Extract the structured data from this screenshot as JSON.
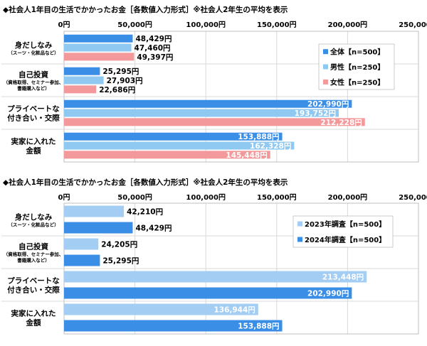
{
  "chart_data": [
    {
      "type": "bar",
      "orientation": "horizontal",
      "title": "◆社会人1年目の生活でかかったお金［各数値入力形式］※社会人2年生の平均を表示",
      "xlim": [
        0,
        250000
      ],
      "ticks": [
        "0円",
        "50,000円",
        "100,000円",
        "150,000円",
        "200,000円",
        "250,000円"
      ],
      "categories": [
        {
          "main": [
            "身だしなみ"
          ],
          "sub": [
            "（スーツ・化粧品など）"
          ]
        },
        {
          "main": [
            "自己投資"
          ],
          "sub": [
            "（資格取得、セミナー参加、",
            "書籍購入など）"
          ]
        },
        {
          "main": [
            "プライベートな",
            "付き合い・交際"
          ],
          "sub": []
        },
        {
          "main": [
            "実家に入れた",
            "金額"
          ],
          "sub": []
        }
      ],
      "legend": "right",
      "series": [
        {
          "name": "全体【n=500】",
          "color": "#3b8ee6",
          "values": [
            48429,
            25295,
            202990,
            153888
          ],
          "labels": [
            "48,429円",
            "25,295円",
            "202,990円",
            "153,888円"
          ]
        },
        {
          "name": "男性【n=250】",
          "color": "#8fc8f0",
          "values": [
            47460,
            27903,
            193752,
            162328
          ],
          "labels": [
            "47,460円",
            "27,903円",
            "193,752円",
            "162,328円"
          ]
        },
        {
          "name": "女性【n=250】",
          "color": "#f4999b",
          "values": [
            49397,
            22686,
            212228,
            145448
          ],
          "labels": [
            "49,397円",
            "22,686円",
            "212,228円",
            "145,448円"
          ]
        }
      ]
    },
    {
      "type": "bar",
      "orientation": "horizontal",
      "title": "◆社会人1年目の生活でかかったお金［各数値入力形式］※社会人2年生の平均を表示",
      "xlim": [
        0,
        250000
      ],
      "ticks": [
        "0円",
        "50,000円",
        "100,000円",
        "150,000円",
        "200,000円",
        "250,000円"
      ],
      "categories": [
        {
          "main": [
            "身だしなみ"
          ],
          "sub": [
            "（スーツ・化粧品など）"
          ]
        },
        {
          "main": [
            "自己投資"
          ],
          "sub": [
            "（資格取得、セミナー参加、",
            "書籍購入など）"
          ]
        },
        {
          "main": [
            "プライベートな",
            "付き合い・交際"
          ],
          "sub": []
        },
        {
          "main": [
            "実家に入れた",
            "金額"
          ],
          "sub": []
        }
      ],
      "legend": "right",
      "series": [
        {
          "name": "2023年調査【n=500】",
          "color": "#a3cdf2",
          "values": [
            42210,
            24205,
            213448,
            136944
          ],
          "labels": [
            "42,210円",
            "24,205円",
            "213,448円",
            "136,944円"
          ]
        },
        {
          "name": "2024年調査【n=500】",
          "color": "#3b8ee6",
          "values": [
            48429,
            25295,
            202990,
            153888
          ],
          "labels": [
            "48,429円",
            "25,295円",
            "202,990円",
            "153,888円"
          ]
        }
      ]
    }
  ]
}
